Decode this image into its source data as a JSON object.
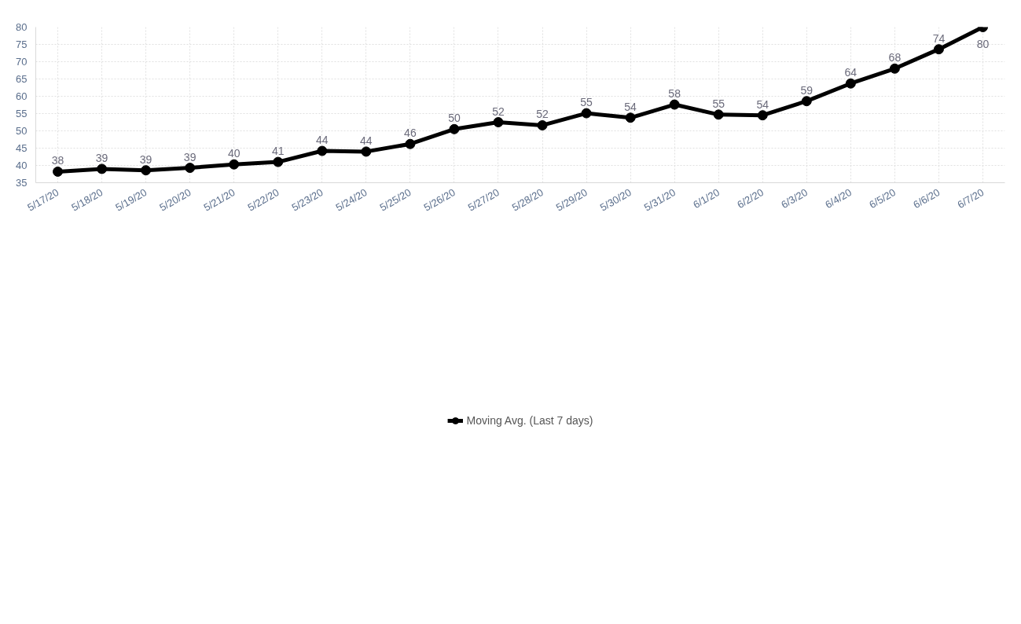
{
  "chart_data": {
    "type": "line",
    "categories": [
      "5/17/20",
      "5/18/20",
      "5/19/20",
      "5/20/20",
      "5/21/20",
      "5/22/20",
      "5/23/20",
      "5/24/20",
      "5/25/20",
      "5/26/20",
      "5/27/20",
      "5/28/20",
      "5/29/20",
      "5/30/20",
      "5/31/20",
      "6/1/20",
      "6/2/20",
      "6/3/20",
      "6/4/20",
      "6/5/20",
      "6/6/20",
      "6/7/20"
    ],
    "series": [
      {
        "name": "Moving Avg. (Last 7 days)",
        "color": "#000000",
        "values": [
          38.2,
          39.0,
          38.6,
          39.3,
          40.3,
          41.0,
          44.2,
          44.0,
          46.2,
          50.5,
          52.5,
          51.6,
          55.1,
          53.8,
          57.6,
          54.7,
          54.5,
          58.6,
          63.7,
          68.0,
          73.6,
          80.0
        ],
        "value_labels": [
          "38",
          "39",
          "39",
          "39",
          "40",
          "41",
          "44",
          "44",
          "46",
          "50",
          "52",
          "52",
          "55",
          "54",
          "58",
          "55",
          "54",
          "59",
          "64",
          "68",
          "74",
          "80"
        ]
      }
    ],
    "ylim": [
      35,
      80
    ],
    "yticks": [
      35,
      40,
      45,
      50,
      55,
      60,
      65,
      70,
      75,
      80
    ],
    "grid": true,
    "legend": "bottom",
    "marker": "circle",
    "line_style": "solid"
  }
}
